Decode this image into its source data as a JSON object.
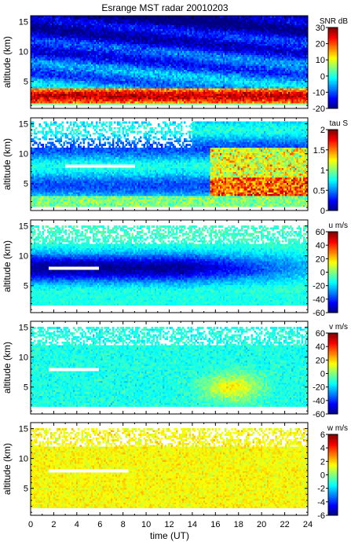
{
  "chart_data": {
    "type": "heatmap",
    "title": "Esrange MST radar 20010203",
    "xlabel": "time (UT)",
    "ylabel": "altitude (km)",
    "x_ticks": [
      0,
      2,
      4,
      6,
      8,
      10,
      12,
      14,
      16,
      18,
      20,
      22,
      24
    ],
    "xlim": [
      0,
      24
    ],
    "ylim": [
      0.5,
      16
    ],
    "y_ticks": [
      5,
      10,
      15
    ],
    "colormap": "jet",
    "panels": [
      {
        "quantity": "SNR",
        "units_label": "SNR dB",
        "clim": [
          -20,
          30
        ],
        "cbar_ticks": [
          -20,
          -10,
          0,
          10,
          20,
          30
        ],
        "description_features": {
          "strong_low_layer_km": [
            1.5,
            4
          ],
          "typical_upper_value": -10,
          "ground_band_km": [
            1,
            1.6
          ],
          "ground_band_value": 5
        }
      },
      {
        "quantity": "tau",
        "units_label": "tau S",
        "clim": [
          0,
          2
        ],
        "cbar_ticks": [
          0,
          0.5,
          1,
          1.5,
          2
        ],
        "description_features": {
          "gap_altitude_km": [
            7.6,
            8.4
          ],
          "gap_time_ut": [
            3,
            9
          ],
          "high_values_after_ut": 15.5
        }
      },
      {
        "quantity": "u",
        "units_label": "u m/s",
        "clim": [
          -60,
          60
        ],
        "cbar_ticks": [
          -60,
          -40,
          -20,
          0,
          20,
          40,
          60
        ],
        "description_features": {
          "jet_core_km": [
            6,
            11
          ],
          "jet_core_value": -50,
          "gap_altitude_km": [
            7.6,
            8.4
          ],
          "gap_time_ut": [
            1.5,
            6
          ]
        }
      },
      {
        "quantity": "v",
        "units_label": "v m/s",
        "clim": [
          -60,
          60
        ],
        "cbar_ticks": [
          -60,
          -40,
          -20,
          0,
          20,
          40,
          60
        ],
        "description_features": {
          "yellow_patch_ut": [
            15,
            20
          ],
          "yellow_patch_km": [
            3,
            8
          ],
          "yellow_patch_value": 15
        }
      },
      {
        "quantity": "w",
        "units_label": "w m/s",
        "clim": [
          -6,
          6
        ],
        "cbar_ticks": [
          -6,
          -4,
          -2,
          0,
          2,
          4,
          6
        ],
        "description_features": {
          "typical_value": 1.5,
          "gap_altitude_km": [
            7.6,
            8.4
          ],
          "gap_time_ut": [
            1.5,
            8.5
          ]
        }
      }
    ]
  }
}
